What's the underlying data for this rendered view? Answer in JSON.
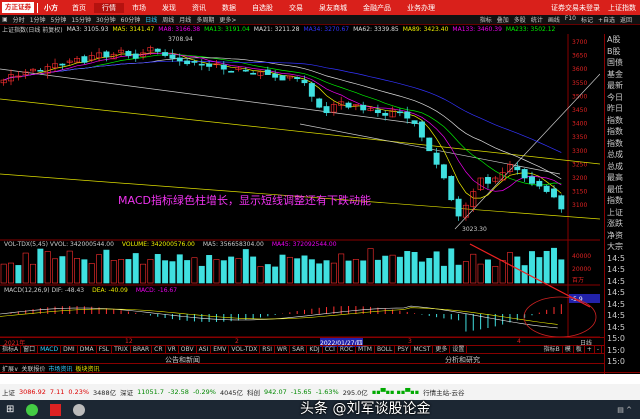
{
  "nav": {
    "logo": "方正证券",
    "brand": "小方",
    "items": [
      "首页",
      "行情",
      "市场",
      "发现",
      "资讯",
      "数据",
      "自选股",
      "交易",
      "泉友商城",
      "金融产品",
      "业务办理"
    ],
    "active": 1,
    "right": [
      "证券交易未登录",
      "上证指数"
    ]
  },
  "toolbar": {
    "periods": [
      "分时",
      "1分钟",
      "5分钟",
      "15分钟",
      "30分钟",
      "60分钟",
      "日线",
      "周线",
      "月线",
      "多周期",
      "更多>"
    ],
    "active": 6,
    "right": [
      "指标",
      "叠加",
      "多股",
      "统计",
      "画线",
      "F10",
      "标记",
      "+自选",
      "返回"
    ]
  },
  "ma_line": [
    {
      "t": "上证指数(日线 前复权)",
      "c": "#ccc"
    },
    {
      "t": "MA3: 3105.93",
      "c": "#ddd"
    },
    {
      "t": "MA5: 3141.47",
      "c": "#ee0"
    },
    {
      "t": "MA8: 3166.38",
      "c": "#e0e"
    },
    {
      "t": "MA13: 3191.04",
      "c": "#0e0"
    },
    {
      "t": "MA21: 3211.28",
      "c": "#ddd"
    },
    {
      "t": "MA34: 3270.67",
      "c": "#33f"
    },
    {
      "t": "MA62: 3339.85",
      "c": "#ddd"
    },
    {
      "t": "MA89: 3423.40",
      "c": "#ee0"
    },
    {
      "t": "MA133: 3460.39",
      "c": "#e0e"
    },
    {
      "t": "MA233: 3502.12",
      "c": "#0e0"
    }
  ],
  "main_chart": {
    "price_axis": [
      "3700",
      "3650",
      "3600",
      "3550",
      "3500",
      "3450",
      "3400",
      "3350",
      "3300",
      "3250",
      "3200",
      "3150",
      "3100"
    ],
    "high_label": "3708.94",
    "low_label": "3023.30",
    "annotation": "MACD指标绿色柱增长，显示短线调整还有下跌动能",
    "closes": [
      3560,
      3580,
      3575,
      3590,
      3600,
      3595,
      3610,
      3620,
      3615,
      3630,
      3640,
      3625,
      3650,
      3660,
      3645,
      3655,
      3670,
      3650,
      3640,
      3660,
      3680,
      3665,
      3650,
      3640,
      3630,
      3620,
      3625,
      3615,
      3610,
      3620,
      3600,
      3590,
      3605,
      3595,
      3585,
      3590,
      3580,
      3570,
      3560,
      3575,
      3565,
      3550,
      3500,
      3460,
      3440,
      3470,
      3480,
      3460,
      3470,
      3450,
      3455,
      3440,
      3430,
      3450,
      3440,
      3420,
      3400,
      3350,
      3300,
      3250,
      3200,
      3120,
      3060,
      3100,
      3150,
      3200,
      3180,
      3200,
      3220,
      3250,
      3230,
      3200,
      3180,
      3170,
      3150,
      3130,
      3086
    ]
  },
  "volume": {
    "label": "VOL-TDX(5,45) VVOL: 342000544.00",
    "volume": "VOLUME: 342000576.00",
    "ma5": "MA5: 356658304.00",
    "ma45": "MA45: 372092544.00",
    "axis": [
      "40000",
      "20000",
      "百万"
    ]
  },
  "macd": {
    "label": "MACD(12,26,9) DIF: -48.43",
    "dea": "DEA: -40.09",
    "macd": "MACD: -16.67",
    "value_box": "-5.9"
  },
  "dates": {
    "items": [
      "2021年",
      "12",
      "2",
      "2022/01/27/四",
      "3",
      "4"
    ],
    "period": "日线"
  },
  "indicators": {
    "items": [
      "指标A",
      "窗口",
      "MACD",
      "DMI",
      "DMA",
      "FSL",
      "TRIX",
      "BRAR",
      "CR",
      "VR",
      "OBV",
      "ASI",
      "EMV",
      "VOL-TDX",
      "RSI",
      "WR",
      "SAR",
      "KDJ",
      "CCI",
      "ROC",
      "MTM",
      "BOLL",
      "PSY",
      "MCST",
      "更多",
      "设置"
    ],
    "active": 2,
    "right": [
      "指标B",
      "模",
      "板",
      "+",
      "-"
    ]
  },
  "sections": {
    "left": "公告和新闻",
    "right": "分析和研究"
  },
  "bottom_tabs": {
    "items": [
      "扩展∨",
      "关联报价",
      "市场资讯",
      "板块资讯"
    ]
  },
  "right_panel": [
    "A股",
    "B股",
    "国债",
    "基金",
    "最新",
    "今日",
    "昨日",
    "指数",
    "指数",
    "指数",
    "总成",
    "总成",
    "最高",
    "最低",
    "指数",
    "上证",
    "涨跌",
    "净资",
    "大宗",
    "14:5",
    "14:5",
    "14:5",
    "14:5",
    "14:5",
    "14:5",
    "14:5",
    "15:0",
    "15:0",
    "15:0"
  ],
  "status": {
    "sh_name": "上证",
    "sh_value": "3086.92",
    "sh_change": "7.11",
    "sh_pct": "0.23%",
    "sh_amount": "3488亿",
    "sz_name": "深证",
    "sz_value": "11051.7",
    "sz_change": "-32.58",
    "sz_pct": "-0.29%",
    "sz_amount": "4045亿",
    "cy_name": "科创",
    "cy_value": "942.07",
    "cy_change": "-15.65",
    "cy_pct": "-1.63%",
    "cy_amount": "295.0亿",
    "server": "行情主站-云谷"
  },
  "watermark": "头条 @刘军谈股论金",
  "colors": {
    "brand": "#d9201b",
    "up": "#ff3030",
    "down": "#40e0e0"
  }
}
